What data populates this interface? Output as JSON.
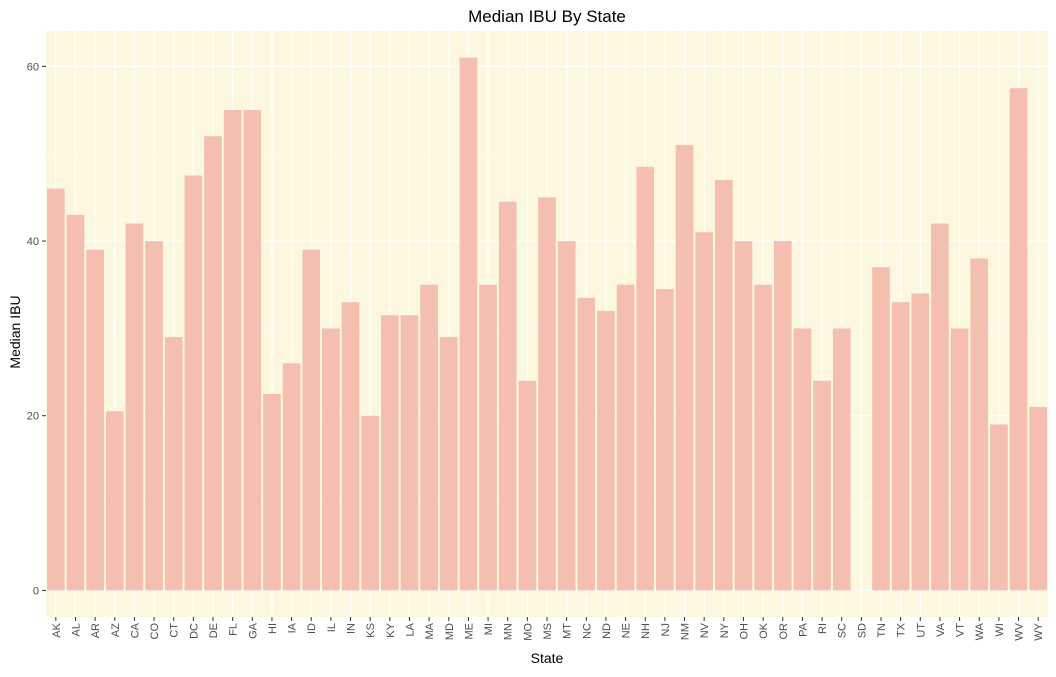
{
  "chart_data": {
    "type": "bar",
    "title": "Median IBU By State",
    "xlabel": "State",
    "ylabel": "Median IBU",
    "ylim": [
      -3.05,
      64.05
    ],
    "yticks": [
      0,
      20,
      40,
      60
    ],
    "grid": true,
    "categories": [
      "AK",
      "AL",
      "AR",
      "AZ",
      "CA",
      "CO",
      "CT",
      "DC",
      "DE",
      "FL",
      "GA",
      "HI",
      "IA",
      "ID",
      "IL",
      "IN",
      "KS",
      "KY",
      "LA",
      "MA",
      "MD",
      "ME",
      "MI",
      "MN",
      "MO",
      "MS",
      "MT",
      "NC",
      "ND",
      "NE",
      "NH",
      "NJ",
      "NM",
      "NV",
      "NY",
      "OH",
      "OK",
      "OR",
      "PA",
      "RI",
      "SC",
      "SD",
      "TN",
      "TX",
      "UT",
      "VA",
      "VT",
      "WA",
      "WI",
      "WV",
      "WY"
    ],
    "values": [
      46,
      43,
      39,
      20.5,
      42,
      40,
      29,
      47.5,
      52,
      55,
      55,
      22.5,
      26,
      39,
      30,
      33,
      20,
      31.5,
      31.5,
      35,
      29,
      61,
      35,
      44.5,
      24,
      45,
      40,
      33.5,
      32,
      35,
      48.5,
      34.5,
      51,
      41,
      47,
      40,
      35,
      40,
      30,
      24,
      30,
      null,
      37,
      33,
      34,
      42,
      30,
      38,
      19,
      57.5,
      21
    ],
    "colors": {
      "bar": "#f4bfb0",
      "panel": "#fcf8e0",
      "grid_major": "#ffffff",
      "text": "#000000",
      "tick_text": "#4d4d4d",
      "tick": "#333333"
    }
  }
}
